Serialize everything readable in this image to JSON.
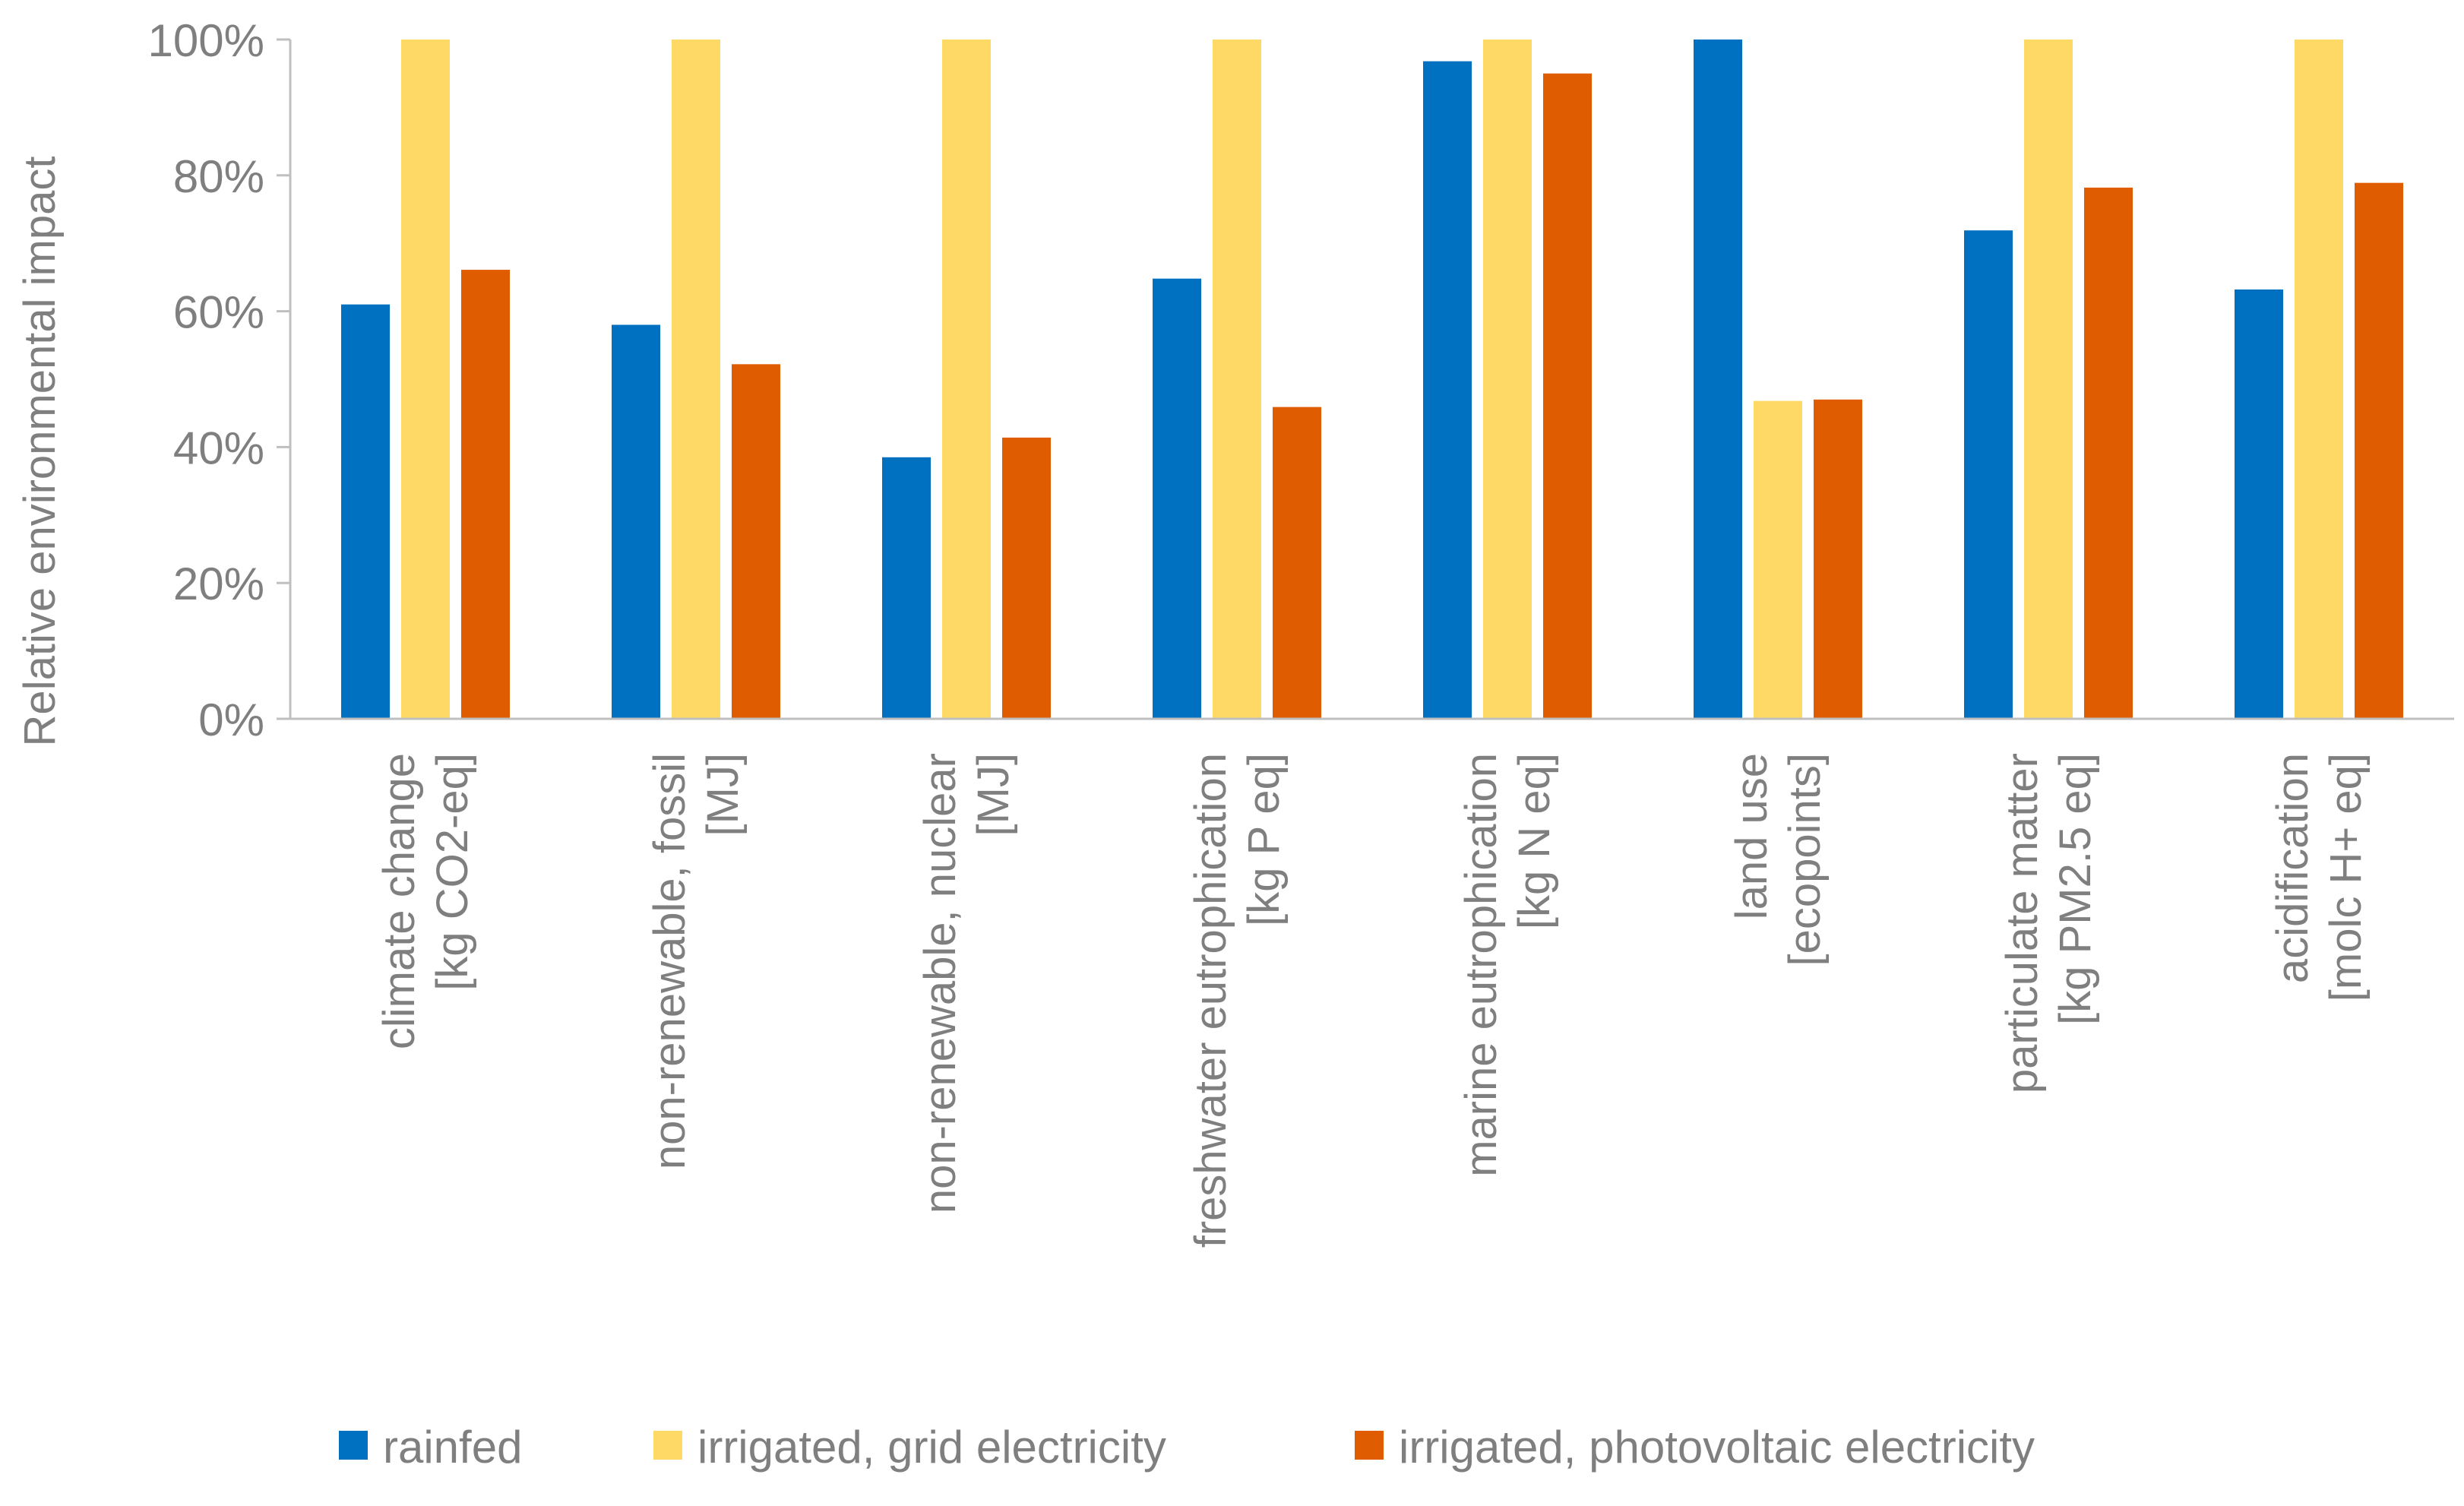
{
  "chart_data": {
    "type": "bar",
    "title": "",
    "xlabel": "",
    "ylabel": "Relative environmental impact",
    "ylim": [
      0,
      100
    ],
    "ytick_step": 20,
    "ytick_suffix": "%",
    "grid": false,
    "legend_position": "bottom",
    "categories": [
      [
        "climate change",
        "[kg CO2-eq]"
      ],
      [
        "non-renewable, fossil",
        "[MJ]"
      ],
      [
        "non-renewable, nuclear",
        "[MJ]"
      ],
      [
        "freshwater eutrophication",
        "[kg P eq]"
      ],
      [
        "marine eutrophication",
        "[kg N eq]"
      ],
      [
        "land use",
        "[ecopoints]"
      ],
      [
        "particulate matter",
        "[kg PM2.5 eq]"
      ],
      [
        "acidification",
        "[molc H+ eq]"
      ]
    ],
    "series": [
      {
        "name": "rainfed",
        "color": "#0070c0",
        "values": [
          61,
          58,
          38.5,
          64.8,
          96.8,
          100,
          71.9,
          63.2
        ]
      },
      {
        "name": "irrigated, grid electricity",
        "color": "#ffd966",
        "values": [
          100,
          100,
          100,
          100,
          100,
          46.8,
          100,
          100
        ]
      },
      {
        "name": "irrigated, photovoltaic electricity",
        "color": "#e05c00",
        "values": [
          66.1,
          52.2,
          41.4,
          45.9,
          95,
          47,
          78.2,
          78.9
        ]
      }
    ]
  }
}
